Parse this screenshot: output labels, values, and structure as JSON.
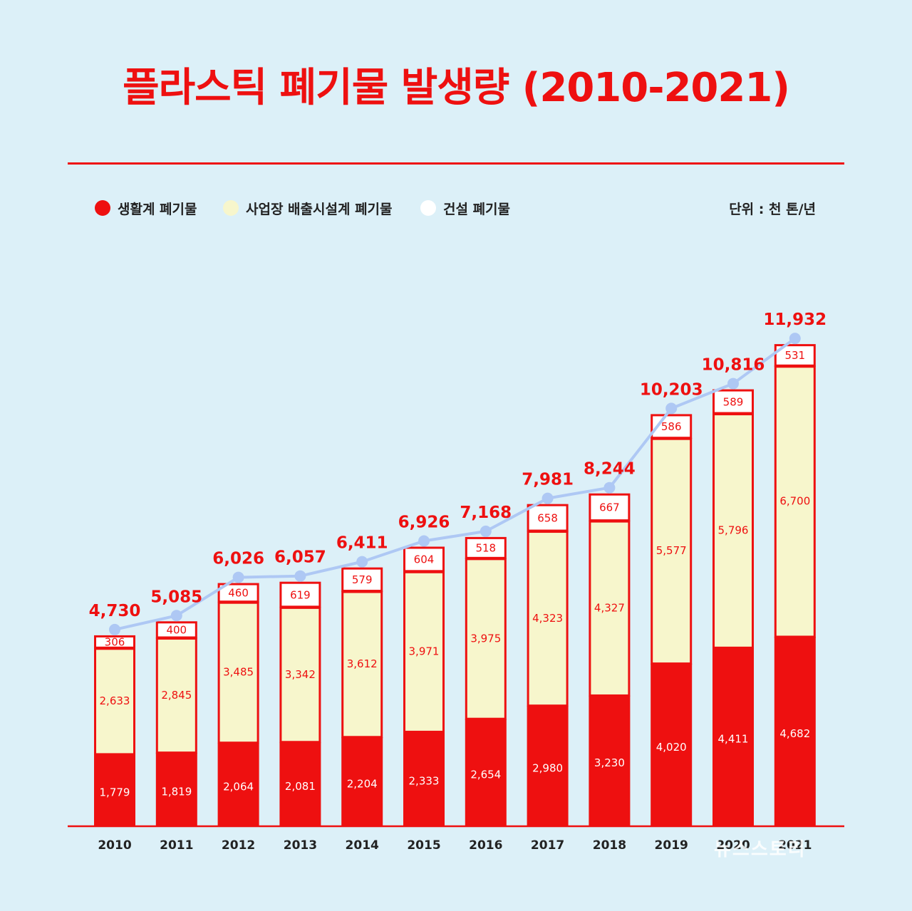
{
  "title": "플라스틱 폐기물 발생량 (2010-2021)",
  "legend": [
    {
      "label": "생활계 폐기물",
      "color": "#ee1010"
    },
    {
      "label": "사업장 배출시설계 폐기물",
      "color": "#f7f6cc"
    },
    {
      "label": "건설 폐기물",
      "color": "#ffffff"
    }
  ],
  "unit": "단위 : 천 톤/년",
  "watermark": "뉴스스토리",
  "colors": {
    "accent": "#ee1010",
    "industrial": "#f7f6cc",
    "construction": "#ffffff",
    "line": "#aec8f4",
    "background": "#dcf0f8"
  },
  "chart_data": {
    "type": "bar",
    "stacked": true,
    "title": "플라스틱 폐기물 발생량 (2010-2021)",
    "categories": [
      "2010",
      "2011",
      "2012",
      "2013",
      "2014",
      "2015",
      "2016",
      "2017",
      "2018",
      "2019",
      "2020",
      "2021"
    ],
    "series": [
      {
        "name": "생활계 폐기물",
        "values": [
          1779,
          1819,
          2064,
          2081,
          2204,
          2333,
          2654,
          2980,
          3230,
          4020,
          4411,
          4682
        ],
        "labels": [
          "1,779",
          "1,819",
          "2,064",
          "2,081",
          "2,204",
          "2,333",
          "2,654",
          "2,980",
          "3,230",
          "4,020",
          "4,411",
          "4,682"
        ]
      },
      {
        "name": "사업장 배출시설계 폐기물",
        "values": [
          2633,
          2845,
          3485,
          3342,
          3612,
          3971,
          3975,
          4323,
          4327,
          5577,
          5796,
          6700
        ],
        "labels": [
          "2,633",
          "2,845",
          "3,485",
          "3,342",
          "3,612",
          "3,971",
          "3,975",
          "4,323",
          "4,327",
          "5,577",
          "5,796",
          "6,700"
        ]
      },
      {
        "name": "건설 폐기물",
        "values": [
          306,
          400,
          460,
          619,
          579,
          604,
          518,
          658,
          667,
          586,
          589,
          531
        ],
        "labels": [
          "306",
          "400",
          "460",
          "619",
          "579",
          "604",
          "518",
          "658",
          "667",
          "586",
          "589",
          "531"
        ]
      }
    ],
    "totals": [
      4730,
      5085,
      6026,
      6057,
      6411,
      6926,
      7168,
      7981,
      8244,
      10203,
      10816,
      11932
    ],
    "total_labels": [
      "4,730",
      "5,085",
      "6,026",
      "6,057",
      "6,411",
      "6,926",
      "7,168",
      "7,981",
      "8,244",
      "10,203",
      "10,816",
      "11,932"
    ],
    "ylim": [
      0,
      12000
    ],
    "unit": "천 톤/년",
    "xlabel": "",
    "ylabel": ""
  }
}
